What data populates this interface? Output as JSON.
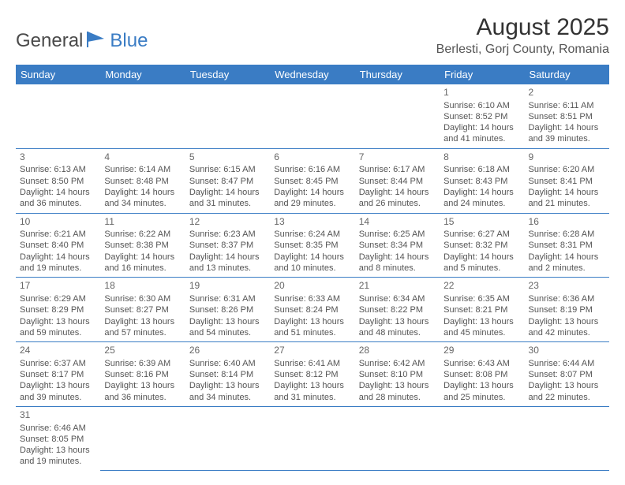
{
  "logo": {
    "part1": "General",
    "part2": "Blue"
  },
  "title": "August 2025",
  "location": "Berlesti, Gorj County, Romania",
  "colors": {
    "header_bg": "#3a7cc4",
    "header_fg": "#ffffff",
    "border": "#3a7cc4"
  },
  "columns": [
    "Sunday",
    "Monday",
    "Tuesday",
    "Wednesday",
    "Thursday",
    "Friday",
    "Saturday"
  ],
  "weeks": [
    [
      null,
      null,
      null,
      null,
      null,
      {
        "n": "1",
        "sr": "Sunrise: 6:10 AM",
        "ss": "Sunset: 8:52 PM",
        "d1": "Daylight: 14 hours",
        "d2": "and 41 minutes."
      },
      {
        "n": "2",
        "sr": "Sunrise: 6:11 AM",
        "ss": "Sunset: 8:51 PM",
        "d1": "Daylight: 14 hours",
        "d2": "and 39 minutes."
      }
    ],
    [
      {
        "n": "3",
        "sr": "Sunrise: 6:13 AM",
        "ss": "Sunset: 8:50 PM",
        "d1": "Daylight: 14 hours",
        "d2": "and 36 minutes."
      },
      {
        "n": "4",
        "sr": "Sunrise: 6:14 AM",
        "ss": "Sunset: 8:48 PM",
        "d1": "Daylight: 14 hours",
        "d2": "and 34 minutes."
      },
      {
        "n": "5",
        "sr": "Sunrise: 6:15 AM",
        "ss": "Sunset: 8:47 PM",
        "d1": "Daylight: 14 hours",
        "d2": "and 31 minutes."
      },
      {
        "n": "6",
        "sr": "Sunrise: 6:16 AM",
        "ss": "Sunset: 8:45 PM",
        "d1": "Daylight: 14 hours",
        "d2": "and 29 minutes."
      },
      {
        "n": "7",
        "sr": "Sunrise: 6:17 AM",
        "ss": "Sunset: 8:44 PM",
        "d1": "Daylight: 14 hours",
        "d2": "and 26 minutes."
      },
      {
        "n": "8",
        "sr": "Sunrise: 6:18 AM",
        "ss": "Sunset: 8:43 PM",
        "d1": "Daylight: 14 hours",
        "d2": "and 24 minutes."
      },
      {
        "n": "9",
        "sr": "Sunrise: 6:20 AM",
        "ss": "Sunset: 8:41 PM",
        "d1": "Daylight: 14 hours",
        "d2": "and 21 minutes."
      }
    ],
    [
      {
        "n": "10",
        "sr": "Sunrise: 6:21 AM",
        "ss": "Sunset: 8:40 PM",
        "d1": "Daylight: 14 hours",
        "d2": "and 19 minutes."
      },
      {
        "n": "11",
        "sr": "Sunrise: 6:22 AM",
        "ss": "Sunset: 8:38 PM",
        "d1": "Daylight: 14 hours",
        "d2": "and 16 minutes."
      },
      {
        "n": "12",
        "sr": "Sunrise: 6:23 AM",
        "ss": "Sunset: 8:37 PM",
        "d1": "Daylight: 14 hours",
        "d2": "and 13 minutes."
      },
      {
        "n": "13",
        "sr": "Sunrise: 6:24 AM",
        "ss": "Sunset: 8:35 PM",
        "d1": "Daylight: 14 hours",
        "d2": "and 10 minutes."
      },
      {
        "n": "14",
        "sr": "Sunrise: 6:25 AM",
        "ss": "Sunset: 8:34 PM",
        "d1": "Daylight: 14 hours",
        "d2": "and 8 minutes."
      },
      {
        "n": "15",
        "sr": "Sunrise: 6:27 AM",
        "ss": "Sunset: 8:32 PM",
        "d1": "Daylight: 14 hours",
        "d2": "and 5 minutes."
      },
      {
        "n": "16",
        "sr": "Sunrise: 6:28 AM",
        "ss": "Sunset: 8:31 PM",
        "d1": "Daylight: 14 hours",
        "d2": "and 2 minutes."
      }
    ],
    [
      {
        "n": "17",
        "sr": "Sunrise: 6:29 AM",
        "ss": "Sunset: 8:29 PM",
        "d1": "Daylight: 13 hours",
        "d2": "and 59 minutes."
      },
      {
        "n": "18",
        "sr": "Sunrise: 6:30 AM",
        "ss": "Sunset: 8:27 PM",
        "d1": "Daylight: 13 hours",
        "d2": "and 57 minutes."
      },
      {
        "n": "19",
        "sr": "Sunrise: 6:31 AM",
        "ss": "Sunset: 8:26 PM",
        "d1": "Daylight: 13 hours",
        "d2": "and 54 minutes."
      },
      {
        "n": "20",
        "sr": "Sunrise: 6:33 AM",
        "ss": "Sunset: 8:24 PM",
        "d1": "Daylight: 13 hours",
        "d2": "and 51 minutes."
      },
      {
        "n": "21",
        "sr": "Sunrise: 6:34 AM",
        "ss": "Sunset: 8:22 PM",
        "d1": "Daylight: 13 hours",
        "d2": "and 48 minutes."
      },
      {
        "n": "22",
        "sr": "Sunrise: 6:35 AM",
        "ss": "Sunset: 8:21 PM",
        "d1": "Daylight: 13 hours",
        "d2": "and 45 minutes."
      },
      {
        "n": "23",
        "sr": "Sunrise: 6:36 AM",
        "ss": "Sunset: 8:19 PM",
        "d1": "Daylight: 13 hours",
        "d2": "and 42 minutes."
      }
    ],
    [
      {
        "n": "24",
        "sr": "Sunrise: 6:37 AM",
        "ss": "Sunset: 8:17 PM",
        "d1": "Daylight: 13 hours",
        "d2": "and 39 minutes."
      },
      {
        "n": "25",
        "sr": "Sunrise: 6:39 AM",
        "ss": "Sunset: 8:16 PM",
        "d1": "Daylight: 13 hours",
        "d2": "and 36 minutes."
      },
      {
        "n": "26",
        "sr": "Sunrise: 6:40 AM",
        "ss": "Sunset: 8:14 PM",
        "d1": "Daylight: 13 hours",
        "d2": "and 34 minutes."
      },
      {
        "n": "27",
        "sr": "Sunrise: 6:41 AM",
        "ss": "Sunset: 8:12 PM",
        "d1": "Daylight: 13 hours",
        "d2": "and 31 minutes."
      },
      {
        "n": "28",
        "sr": "Sunrise: 6:42 AM",
        "ss": "Sunset: 8:10 PM",
        "d1": "Daylight: 13 hours",
        "d2": "and 28 minutes."
      },
      {
        "n": "29",
        "sr": "Sunrise: 6:43 AM",
        "ss": "Sunset: 8:08 PM",
        "d1": "Daylight: 13 hours",
        "d2": "and 25 minutes."
      },
      {
        "n": "30",
        "sr": "Sunrise: 6:44 AM",
        "ss": "Sunset: 8:07 PM",
        "d1": "Daylight: 13 hours",
        "d2": "and 22 minutes."
      }
    ],
    [
      {
        "n": "31",
        "sr": "Sunrise: 6:46 AM",
        "ss": "Sunset: 8:05 PM",
        "d1": "Daylight: 13 hours",
        "d2": "and 19 minutes."
      },
      null,
      null,
      null,
      null,
      null,
      null
    ]
  ]
}
